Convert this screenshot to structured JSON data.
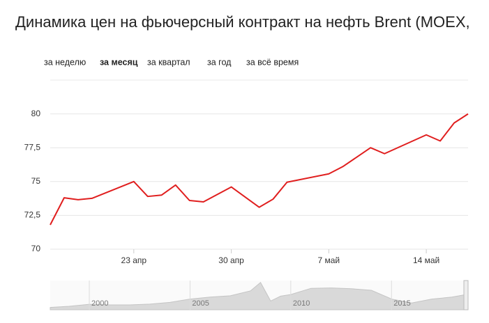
{
  "title": "Динамика цен на фьючерсный контракт на нефть Brent (MOEX,",
  "tabs": [
    "за неделю",
    "за месяц",
    "за квартал",
    "за год",
    "за всё время"
  ],
  "chart_data": {
    "type": "line",
    "x": [
      17,
      18,
      19,
      20,
      23,
      24,
      25,
      26,
      27,
      28,
      30,
      32,
      33,
      34,
      37,
      38,
      40,
      41,
      44,
      45,
      46,
      47
    ],
    "series": [
      {
        "color": "#e01e1e",
        "values": [
          71.8,
          73.8,
          73.66,
          73.76,
          75.0,
          73.9,
          74.0,
          74.74,
          73.6,
          73.5,
          74.6,
          73.1,
          73.7,
          74.95,
          75.57,
          76.1,
          77.5,
          77.06,
          78.45,
          78.0,
          79.33,
          80.0
        ]
      }
    ],
    "xlim": [
      17,
      47
    ],
    "xticks": [
      {
        "value": 23,
        "label": "23 апр"
      },
      {
        "value": 30,
        "label": "30 апр"
      },
      {
        "value": 37,
        "label": "7 май"
      },
      {
        "value": 44,
        "label": "14 май"
      }
    ],
    "ylim": [
      70,
      82.5
    ],
    "yticks": [
      70,
      {
        "value": 72.5,
        "label": "72,5"
      },
      75,
      {
        "value": 77.5,
        "label": "77,5"
      },
      80
    ],
    "grid": true,
    "navigator": {
      "type": "area",
      "color": "#d9d9d9",
      "x": [
        1998.06,
        1999,
        2000,
        2001,
        2002,
        2003,
        2004,
        2005,
        2006,
        2007,
        2008,
        2008.5,
        2009,
        2009.5,
        2010,
        2011,
        2012,
        2013,
        2014,
        2014.9,
        2015,
        2016,
        2017,
        2018,
        2018.8
      ],
      "values": [
        12,
        18,
        28,
        25,
        25,
        29,
        38,
        55,
        65,
        72,
        97,
        140,
        45,
        70,
        78,
        110,
        112,
        108,
        100,
        60,
        55,
        35,
        55,
        65,
        80
      ],
      "xlim": [
        1998.06,
        2018.8
      ],
      "ylim": [
        0,
        150
      ],
      "xticks": [
        2000,
        2005,
        2010,
        2015
      ]
    }
  }
}
